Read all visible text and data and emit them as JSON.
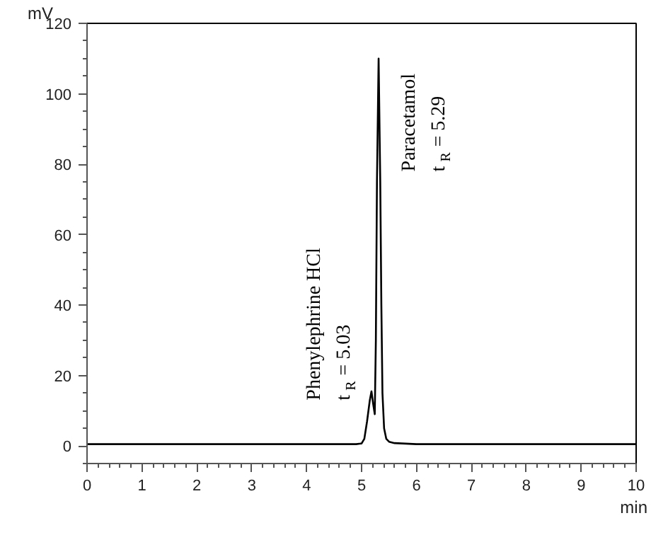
{
  "chart_data": {
    "type": "line",
    "xlabel": "min",
    "ylabel": "mV",
    "x": [
      0,
      1,
      2,
      3,
      4,
      4.9,
      5.0,
      5.05,
      5.1,
      5.15,
      5.18,
      5.21,
      5.24,
      5.26,
      5.28,
      5.31,
      5.34,
      5.36,
      5.38,
      5.41,
      5.45,
      5.5,
      5.6,
      6,
      7,
      8,
      9,
      10
    ],
    "series": [
      {
        "color": "#000000",
        "values": [
          0.5,
          0.5,
          0.5,
          0.5,
          0.5,
          0.5,
          0.7,
          2,
          7,
          13,
          15.5,
          12,
          9,
          30,
          75,
          110,
          75,
          40,
          15,
          5,
          2,
          1.2,
          0.8,
          0.5,
          0.5,
          0.5,
          0.5,
          0.5
        ]
      }
    ],
    "xlim": [
      0,
      10
    ],
    "ylim": [
      -5,
      120
    ],
    "xticks": [
      0,
      1,
      2,
      3,
      4,
      5,
      6,
      7,
      8,
      9,
      10
    ],
    "yticks": [
      0,
      20,
      40,
      60,
      80,
      100,
      120
    ],
    "grid": false,
    "marker": "none",
    "line_style": "solid",
    "annotations": [
      {
        "text": "Phenylephrine HCl\nt$_{R}$ = 5.03",
        "x": 5.18,
        "y": 15.5
      },
      {
        "text": "Paracetamol\nt$_{R}$ = 5.29",
        "x": 5.31,
        "y": 110
      }
    ]
  }
}
